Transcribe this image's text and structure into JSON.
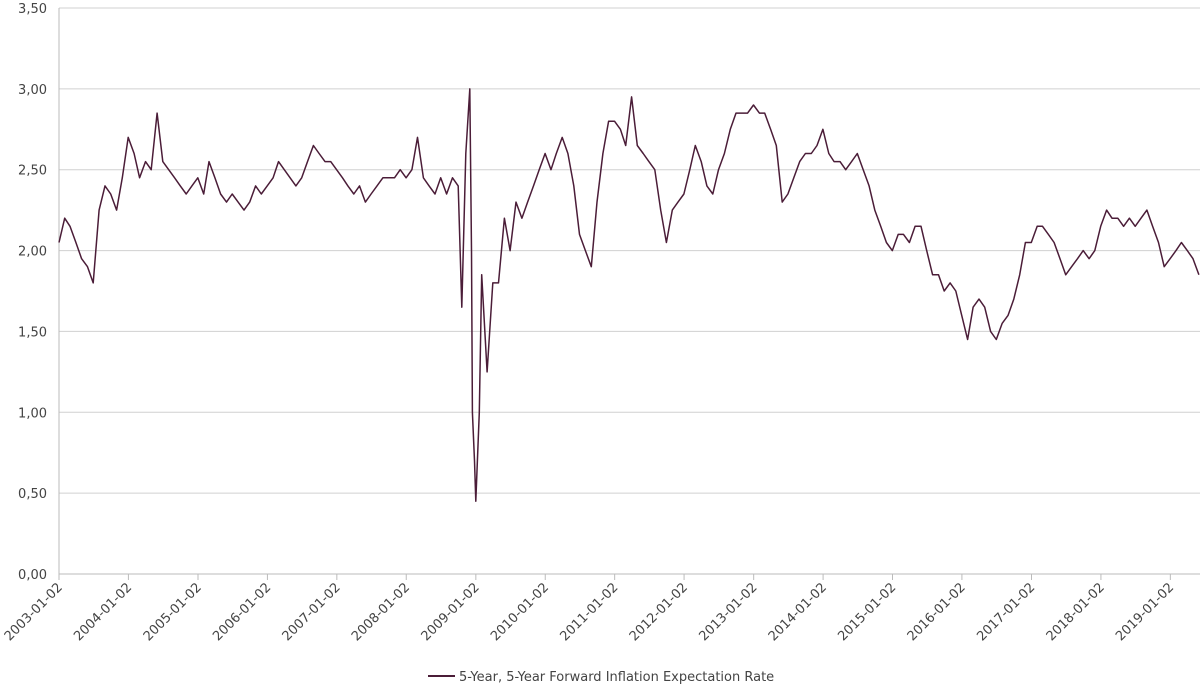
{
  "chart_data": {
    "type": "line",
    "x": [
      "2003-01-02",
      "2003-02-01",
      "2003-03-01",
      "2003-04-01",
      "2003-05-01",
      "2003-06-01",
      "2003-07-01",
      "2003-08-01",
      "2003-09-01",
      "2003-10-01",
      "2003-11-01",
      "2003-12-01",
      "2004-01-01",
      "2004-02-01",
      "2004-03-01",
      "2004-04-01",
      "2004-05-01",
      "2004-06-01",
      "2004-07-01",
      "2004-08-01",
      "2004-09-01",
      "2004-10-01",
      "2004-11-01",
      "2004-12-01",
      "2005-01-01",
      "2005-02-01",
      "2005-03-01",
      "2005-04-01",
      "2005-05-01",
      "2005-06-01",
      "2005-07-01",
      "2005-08-01",
      "2005-09-01",
      "2005-10-01",
      "2005-11-01",
      "2005-12-01",
      "2006-01-01",
      "2006-02-01",
      "2006-03-01",
      "2006-04-01",
      "2006-05-01",
      "2006-06-01",
      "2006-07-01",
      "2006-08-01",
      "2006-09-01",
      "2006-10-01",
      "2006-11-01",
      "2006-12-01",
      "2007-01-01",
      "2007-02-01",
      "2007-03-01",
      "2007-04-01",
      "2007-05-01",
      "2007-06-01",
      "2007-07-01",
      "2007-08-01",
      "2007-09-01",
      "2007-10-01",
      "2007-11-01",
      "2007-12-01",
      "2008-01-01",
      "2008-02-01",
      "2008-03-01",
      "2008-04-01",
      "2008-05-01",
      "2008-06-01",
      "2008-07-01",
      "2008-08-01",
      "2008-09-01",
      "2008-10-01",
      "2008-10-20",
      "2008-11-10",
      "2008-12-01",
      "2008-12-10",
      "2008-12-15",
      "2008-12-26",
      "2009-01-02",
      "2009-01-20",
      "2009-02-02",
      "2009-03-02",
      "2009-04-01",
      "2009-05-01",
      "2009-06-01",
      "2009-07-01",
      "2009-08-01",
      "2009-09-01",
      "2009-10-01",
      "2009-11-01",
      "2009-12-01",
      "2010-01-01",
      "2010-02-01",
      "2010-03-01",
      "2010-04-01",
      "2010-05-01",
      "2010-06-01",
      "2010-07-01",
      "2010-08-01",
      "2010-09-01",
      "2010-10-01",
      "2010-11-01",
      "2010-12-01",
      "2011-01-01",
      "2011-02-01",
      "2011-03-01",
      "2011-04-01",
      "2011-05-01",
      "2011-06-01",
      "2011-07-01",
      "2011-08-01",
      "2011-09-01",
      "2011-10-01",
      "2011-11-01",
      "2011-12-01",
      "2012-01-01",
      "2012-02-01",
      "2012-03-01",
      "2012-04-01",
      "2012-05-01",
      "2012-06-01",
      "2012-07-01",
      "2012-08-01",
      "2012-09-01",
      "2012-10-01",
      "2012-11-01",
      "2012-12-01",
      "2013-01-01",
      "2013-02-01",
      "2013-03-01",
      "2013-04-01",
      "2013-05-01",
      "2013-06-01",
      "2013-07-01",
      "2013-08-01",
      "2013-09-01",
      "2013-10-01",
      "2013-11-01",
      "2013-12-01",
      "2014-01-01",
      "2014-02-01",
      "2014-03-01",
      "2014-04-01",
      "2014-05-01",
      "2014-06-01",
      "2014-07-01",
      "2014-08-01",
      "2014-09-01",
      "2014-10-01",
      "2014-11-01",
      "2014-12-01",
      "2015-01-01",
      "2015-02-01",
      "2015-03-01",
      "2015-04-01",
      "2015-05-01",
      "2015-06-01",
      "2015-07-01",
      "2015-08-01",
      "2015-09-01",
      "2015-10-01",
      "2015-11-01",
      "2015-12-01",
      "2016-01-01",
      "2016-02-01",
      "2016-03-01",
      "2016-04-01",
      "2016-05-01",
      "2016-06-01",
      "2016-07-01",
      "2016-08-01",
      "2016-09-01",
      "2016-10-01",
      "2016-11-01",
      "2016-12-01",
      "2017-01-01",
      "2017-02-01",
      "2017-03-01",
      "2017-04-01",
      "2017-05-01",
      "2017-06-01",
      "2017-07-01",
      "2017-08-01",
      "2017-09-01",
      "2017-10-01",
      "2017-11-01",
      "2017-12-01",
      "2018-01-01",
      "2018-02-01",
      "2018-03-01",
      "2018-04-01",
      "2018-05-01",
      "2018-06-01",
      "2018-07-01",
      "2018-08-01",
      "2018-09-01",
      "2018-10-01",
      "2018-11-01",
      "2018-12-01",
      "2019-01-01",
      "2019-02-01",
      "2019-03-01",
      "2019-04-01",
      "2019-05-01",
      "2019-06-01"
    ],
    "series": [
      {
        "name": "5-Year, 5-Year Forward Inflation Expectation Rate",
        "color": "#4b1d38",
        "values": [
          2.05,
          2.2,
          2.15,
          2.05,
          1.95,
          1.9,
          1.8,
          2.25,
          2.4,
          2.35,
          2.25,
          2.45,
          2.7,
          2.6,
          2.45,
          2.55,
          2.5,
          2.85,
          2.55,
          2.5,
          2.45,
          2.4,
          2.35,
          2.4,
          2.45,
          2.35,
          2.55,
          2.45,
          2.35,
          2.3,
          2.35,
          2.3,
          2.25,
          2.3,
          2.4,
          2.35,
          2.4,
          2.45,
          2.55,
          2.5,
          2.45,
          2.4,
          2.45,
          2.55,
          2.65,
          2.6,
          2.55,
          2.55,
          2.5,
          2.45,
          2.4,
          2.35,
          2.4,
          2.3,
          2.35,
          2.4,
          2.45,
          2.45,
          2.45,
          2.5,
          2.45,
          2.5,
          2.7,
          2.45,
          2.4,
          2.35,
          2.45,
          2.35,
          2.45,
          2.4,
          1.65,
          2.6,
          3.0,
          2.0,
          1.0,
          0.7,
          0.45,
          1.0,
          1.85,
          1.25,
          1.8,
          1.8,
          2.2,
          2.0,
          2.3,
          2.2,
          2.3,
          2.4,
          2.5,
          2.6,
          2.5,
          2.6,
          2.7,
          2.6,
          2.4,
          2.1,
          2.0,
          1.9,
          2.3,
          2.6,
          2.8,
          2.8,
          2.75,
          2.65,
          2.95,
          2.65,
          2.6,
          2.55,
          2.5,
          2.25,
          2.05,
          2.25,
          2.3,
          2.35,
          2.5,
          2.65,
          2.55,
          2.4,
          2.35,
          2.5,
          2.6,
          2.75,
          2.85,
          2.85,
          2.85,
          2.9,
          2.85,
          2.85,
          2.75,
          2.65,
          2.3,
          2.35,
          2.45,
          2.55,
          2.6,
          2.6,
          2.65,
          2.75,
          2.6,
          2.55,
          2.55,
          2.5,
          2.55,
          2.6,
          2.5,
          2.4,
          2.25,
          2.15,
          2.05,
          2.0,
          2.1,
          2.1,
          2.05,
          2.15,
          2.15,
          2.0,
          1.85,
          1.85,
          1.75,
          1.8,
          1.75,
          1.6,
          1.45,
          1.65,
          1.7,
          1.65,
          1.5,
          1.45,
          1.55,
          1.6,
          1.7,
          1.85,
          2.05,
          2.05,
          2.15,
          2.15,
          2.1,
          2.05,
          1.95,
          1.85,
          1.9,
          1.95,
          2.0,
          1.95,
          2.0,
          2.15,
          2.25,
          2.2,
          2.2,
          2.15,
          2.2,
          2.15,
          2.2,
          2.25,
          2.15,
          2.05,
          1.9,
          1.95,
          2.0,
          2.05,
          2.0,
          1.95,
          1.85
        ]
      }
    ],
    "xlim": [
      "2003-01-02",
      "2019-06-07"
    ],
    "xticks": [
      "2003-01-02",
      "2004-01-02",
      "2005-01-02",
      "2006-01-02",
      "2007-01-02",
      "2008-01-02",
      "2009-01-02",
      "2010-01-02",
      "2011-01-02",
      "2012-01-02",
      "2013-01-02",
      "2014-01-02",
      "2015-01-02",
      "2016-01-02",
      "2017-01-02",
      "2018-01-02",
      "2019-01-02"
    ],
    "ylim": [
      0,
      3.5
    ],
    "yticks": [
      {
        "value": 0,
        "label": "0,00"
      },
      {
        "value": 0.5,
        "label": "0,50"
      },
      {
        "value": 1,
        "label": "1,00"
      },
      {
        "value": 1.5,
        "label": "1,50"
      },
      {
        "value": 2,
        "label": "2,00"
      },
      {
        "value": 2.5,
        "label": "2,50"
      },
      {
        "value": 3,
        "label": "3,00"
      },
      {
        "value": 3.5,
        "label": "3,50"
      }
    ],
    "grid": true
  }
}
